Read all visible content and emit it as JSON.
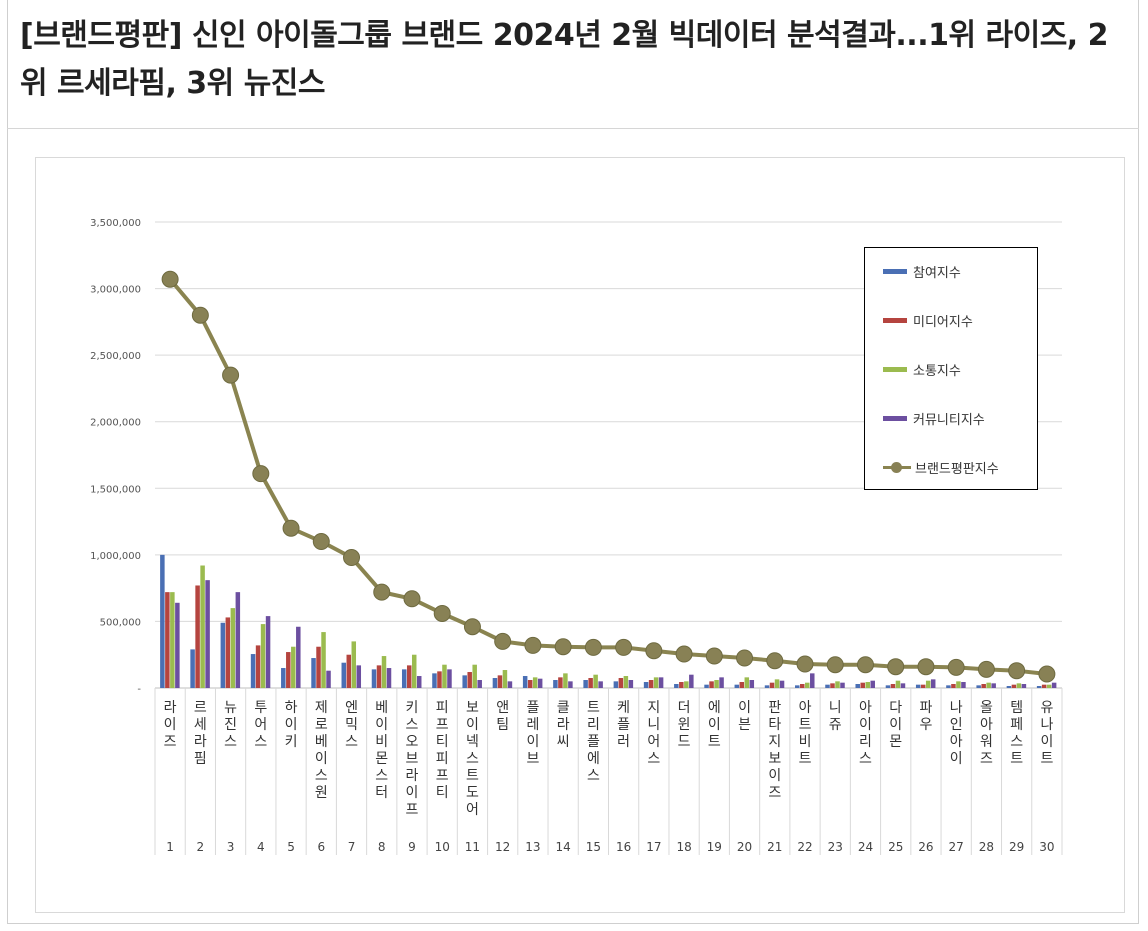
{
  "article": {
    "title": "[브랜드평판] 신인 아이돌그룹 브랜드 2024년 2월 빅데이터 분석결과...1위 라이즈, 2위 르세라핌, 3위 뉴진스"
  },
  "chart_data": {
    "type": "bar",
    "title": "",
    "xlabel": "",
    "ylabel": "",
    "ylim": [
      0,
      3500000
    ],
    "y_ticks": [
      "-",
      "500,000",
      "1,000,000",
      "1,500,000",
      "2,000,000",
      "2,500,000",
      "3,000,000",
      "3,500,000"
    ],
    "grid": true,
    "legend_position": "top-right",
    "categories": [
      "라이즈",
      "르세라핌",
      "뉴진스",
      "투어스",
      "하이키",
      "제로베이스원",
      "엔믹스",
      "베이비몬스터",
      "키스오브라이프",
      "피프티피프티",
      "보이넥스트도어",
      "앤팀",
      "플레이브",
      "클라씨",
      "트리플에스",
      "케플러",
      "지니어스",
      "더윈드",
      "에이트",
      "이븐",
      "판타지보이즈",
      "아트비트",
      "니쥬",
      "아이리스",
      "다이몬",
      "파우",
      "나인아이",
      "올아워즈",
      "템페스트",
      "유나이트"
    ],
    "ranks": [
      "1",
      "2",
      "3",
      "4",
      "5",
      "6",
      "7",
      "8",
      "9",
      "10",
      "11",
      "12",
      "13",
      "14",
      "15",
      "16",
      "17",
      "18",
      "19",
      "20",
      "21",
      "22",
      "23",
      "24",
      "25",
      "26",
      "27",
      "28",
      "29",
      "30"
    ],
    "series": [
      {
        "name": "참여지수",
        "kind": "bar",
        "color": "#4a6fb4",
        "values": [
          1000000,
          290000,
          490000,
          255000,
          150000,
          225000,
          190000,
          140000,
          140000,
          110000,
          95000,
          75000,
          90000,
          60000,
          60000,
          50000,
          45000,
          30000,
          25000,
          25000,
          20000,
          20000,
          25000,
          30000,
          20000,
          25000,
          20000,
          20000,
          15000,
          15000
        ]
      },
      {
        "name": "미디어지수",
        "kind": "bar",
        "color": "#b5443f",
        "values": [
          720000,
          770000,
          530000,
          320000,
          270000,
          310000,
          250000,
          170000,
          170000,
          125000,
          120000,
          95000,
          60000,
          80000,
          75000,
          75000,
          60000,
          45000,
          50000,
          45000,
          40000,
          30000,
          35000,
          40000,
          30000,
          25000,
          30000,
          30000,
          25000,
          25000
        ]
      },
      {
        "name": "소통지수",
        "kind": "bar",
        "color": "#9bbb4f",
        "values": [
          720000,
          920000,
          600000,
          480000,
          310000,
          420000,
          350000,
          240000,
          250000,
          175000,
          175000,
          135000,
          80000,
          110000,
          100000,
          90000,
          80000,
          50000,
          60000,
          80000,
          65000,
          40000,
          50000,
          45000,
          55000,
          55000,
          50000,
          40000,
          35000,
          25000
        ]
      },
      {
        "name": "커뮤니티지수",
        "kind": "bar",
        "color": "#6c4fa0",
        "values": [
          640000,
          810000,
          720000,
          540000,
          460000,
          130000,
          170000,
          150000,
          90000,
          140000,
          60000,
          50000,
          70000,
          50000,
          50000,
          60000,
          80000,
          100000,
          80000,
          60000,
          55000,
          110000,
          40000,
          55000,
          35000,
          65000,
          45000,
          35000,
          30000,
          40000
        ]
      },
      {
        "name": "브랜드평판지수",
        "kind": "line",
        "color": "#8a8450",
        "values": [
          3070000,
          2800000,
          2350000,
          1610000,
          1200000,
          1100000,
          980000,
          720000,
          670000,
          560000,
          460000,
          350000,
          320000,
          310000,
          305000,
          305000,
          280000,
          255000,
          240000,
          225000,
          205000,
          180000,
          175000,
          175000,
          160000,
          160000,
          155000,
          140000,
          130000,
          105000
        ]
      }
    ]
  }
}
